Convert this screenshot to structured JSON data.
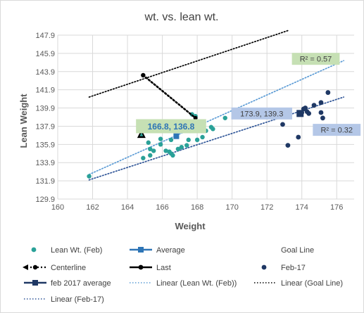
{
  "chart_data": {
    "type": "scatter",
    "title": "wt. vs. lean wt.",
    "xlabel": "Weight",
    "ylabel": "Lean Weight",
    "xlim": [
      160,
      177
    ],
    "ylim": [
      129.9,
      147.9
    ],
    "x_ticks": [
      "160",
      "162",
      "164",
      "166",
      "168",
      "170",
      "172",
      "174",
      "176"
    ],
    "y_ticks": [
      "129.9",
      "131.9",
      "133.9",
      "135.9",
      "137.9",
      "139.9",
      "141.9",
      "143.9",
      "145.9",
      "147.9"
    ],
    "grid": true,
    "legend_position": "bottom",
    "colors": {
      "lean_feb": "#2aa198",
      "average": "#2e75b6",
      "goal": "#000000",
      "feb17": "#1f3864",
      "feb17_avg": "#1f3864",
      "trend_lean": "#5b9bd5",
      "trend_goal": "#000000",
      "trend_feb17": "#2f5597",
      "label_green_bg": "#c6e0b4",
      "label_blue_bg": "#b4c7e7",
      "axis_text": "#595959",
      "title_text": "#404040"
    },
    "series": [
      {
        "name": "Lean Wt. (Feb)",
        "marker": "circle",
        "points": [
          [
            161.8,
            132.4
          ],
          [
            164.9,
            134.4
          ],
          [
            165.3,
            134.7
          ],
          [
            165.3,
            135.4
          ],
          [
            165.5,
            135.2
          ],
          [
            165.2,
            136.1
          ],
          [
            165.9,
            135.9
          ],
          [
            165.9,
            136.5
          ],
          [
            166.2,
            135.2
          ],
          [
            166.4,
            135.1
          ],
          [
            166.5,
            134.9
          ],
          [
            166.6,
            134.7
          ],
          [
            166.5,
            136.4
          ],
          [
            166.9,
            135.4
          ],
          [
            167.1,
            135.6
          ],
          [
            167.4,
            135.8
          ],
          [
            167.5,
            136.4
          ],
          [
            167.6,
            137.4
          ],
          [
            167.8,
            137.6
          ],
          [
            167.7,
            139.2
          ],
          [
            167.9,
            139.0
          ],
          [
            168.0,
            136.4
          ],
          [
            168.3,
            136.7
          ],
          [
            168.5,
            137.4
          ],
          [
            168.8,
            137.8
          ],
          [
            168.9,
            137.6
          ],
          [
            169.6,
            138.8
          ]
        ]
      },
      {
        "name": "Average",
        "marker": "square",
        "points": [
          [
            166.8,
            136.8
          ]
        ]
      },
      {
        "name": "Goal Line",
        "marker": "triangle",
        "points": [
          [
            164.8,
            137.0
          ]
        ]
      },
      {
        "name": "Centerline",
        "marker": "circle",
        "line": "dotted",
        "points": [
          [
            164.9,
            143.5
          ],
          [
            167.9,
            138.8
          ]
        ]
      },
      {
        "name": "Last",
        "marker": "circle",
        "points": [
          [
            164.9,
            143.5
          ]
        ]
      },
      {
        "name": "Feb-17",
        "marker": "circle",
        "points": [
          [
            172.9,
            138.1
          ],
          [
            173.2,
            135.8
          ],
          [
            173.8,
            136.7
          ],
          [
            174.0,
            139.4
          ],
          [
            174.1,
            139.8
          ],
          [
            174.2,
            139.9
          ],
          [
            174.3,
            139.5
          ],
          [
            174.4,
            139.3
          ],
          [
            174.7,
            140.2
          ],
          [
            175.1,
            140.5
          ],
          [
            175.1,
            139.4
          ],
          [
            175.2,
            138.8
          ],
          [
            175.5,
            141.6
          ]
        ]
      },
      {
        "name": "feb 2017 average",
        "marker": "square",
        "points": [
          [
            173.9,
            139.3
          ]
        ]
      }
    ],
    "trendlines": [
      {
        "name": "Linear (Lean Wt. (Feb))",
        "style": "dotted",
        "x": [
          161.8,
          176.4
        ],
        "y": [
          132.6,
          145.1
        ]
      },
      {
        "name": "Linear (Goal Line)",
        "style": "dotted",
        "x": [
          161.8,
          173.2
        ],
        "y": [
          141.1,
          148.4
        ]
      },
      {
        "name": "Linear (Feb-17)",
        "style": "dotted",
        "x": [
          161.8,
          176.4
        ],
        "y": [
          132.0,
          141.1
        ]
      }
    ],
    "annotations": [
      {
        "text": "R² = 0.57",
        "x": 174.8,
        "y": 145.3,
        "style": "green"
      },
      {
        "text": "R² = 0.32",
        "x": 176.0,
        "y": 137.5,
        "style": "blue"
      },
      {
        "text": "173.9, 139.3",
        "x": 171.7,
        "y": 139.3,
        "style": "blue"
      },
      {
        "text": "166.8, 136.8",
        "x": 166.5,
        "y": 137.9,
        "style": "green-bold"
      }
    ],
    "legend": [
      {
        "label": "Lean Wt. (Feb)",
        "symbol": "circle",
        "color": "lean_feb"
      },
      {
        "label": "Average",
        "symbol": "line-square",
        "color": "average"
      },
      {
        "label": "Goal Line",
        "symbol": "none",
        "color": "goal"
      },
      {
        "label": "Centerline",
        "symbol": "arrow-dotted",
        "color": "goal"
      },
      {
        "label": "Last",
        "symbol": "line-circle",
        "color": "goal"
      },
      {
        "label": "Feb-17",
        "symbol": "circle",
        "color": "feb17"
      },
      {
        "label": "feb 2017 average",
        "symbol": "line-square",
        "color": "feb17_avg"
      },
      {
        "label": "Linear (Lean Wt. (Feb))",
        "symbol": "dotted",
        "color": "trend_lean"
      },
      {
        "label": "Linear (Goal Line)",
        "symbol": "dotted",
        "color": "trend_goal"
      },
      {
        "label": "Linear (Feb-17)",
        "symbol": "dotted",
        "color": "trend_feb17"
      }
    ]
  }
}
